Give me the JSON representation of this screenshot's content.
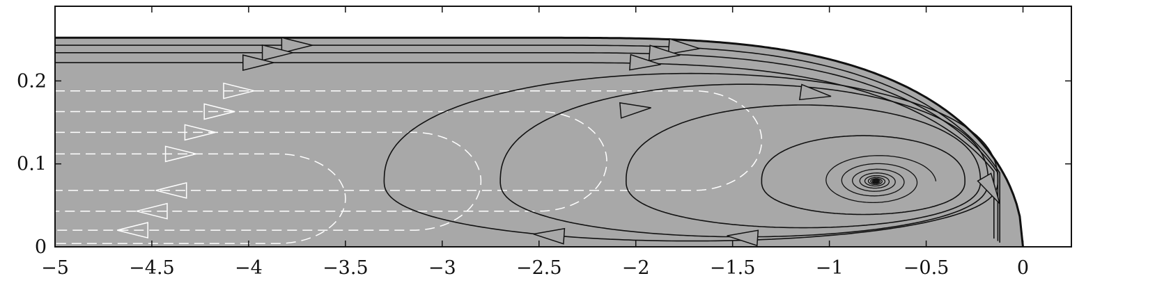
{
  "chart_data": {
    "type": "line",
    "title": "",
    "xlabel": "",
    "ylabel": "",
    "xlim": [
      -5,
      0.25
    ],
    "ylim": [
      0,
      0.29
    ],
    "grid": false,
    "x_ticks": [
      {
        "value": -5,
        "label": "−5"
      },
      {
        "value": -4.5,
        "label": "−4.5"
      },
      {
        "value": -4,
        "label": "−4"
      },
      {
        "value": -3.5,
        "label": "−3.5"
      },
      {
        "value": -3,
        "label": "−3"
      },
      {
        "value": -2.5,
        "label": "−2.5"
      },
      {
        "value": -2,
        "label": "−2"
      },
      {
        "value": -1.5,
        "label": "−1.5"
      },
      {
        "value": -1,
        "label": "−1"
      },
      {
        "value": -0.5,
        "label": "−0.5"
      },
      {
        "value": 0,
        "label": "0"
      }
    ],
    "y_ticks": [
      {
        "value": 0,
        "label": "0"
      },
      {
        "value": 0.1,
        "label": "0.1"
      },
      {
        "value": 0.2,
        "label": "0.2"
      }
    ],
    "region": {
      "fill": "#a8a8a8",
      "x_start": -5,
      "top_height": 0.252,
      "front_x": 0
    },
    "vortex_center": [
      -0.76,
      0.079
    ],
    "colors": {
      "region": "#a8a8a8",
      "streamline": "#111111",
      "dashed": "#ffffff"
    },
    "solid_streamlines": {
      "parallel": [
        {
          "y": 0.243,
          "front_x": -0.12,
          "front_y": 0.005,
          "arrow_x": -3.75
        },
        {
          "y": 0.234,
          "front_x": -0.13,
          "front_y": 0.007,
          "arrow_x": -3.85
        },
        {
          "y": 0.222,
          "front_x": -0.15,
          "front_y": 0.01,
          "arrow_x": -3.95
        }
      ],
      "closed_loops": [
        {
          "x_left": -3.3,
          "arrow_x": -2.45
        },
        {
          "x_left": -2.7,
          "arrow_x": -1.45
        },
        {
          "x_left": -2.05
        },
        {
          "x_left": -1.35
        }
      ]
    },
    "dashed_streamlines": {
      "upper_y": [
        0.188,
        0.163,
        0.138,
        0.112
      ],
      "lower_y": [
        0.068,
        0.043,
        0.02,
        0.004
      ],
      "turn_x": [
        -1.4,
        -2.2,
        -2.85,
        -3.55
      ],
      "arrow_x_upper": [
        -4.05,
        -4.15,
        -4.25,
        -4.35
      ],
      "arrow_x_lower": [
        -4.4,
        -4.5,
        -4.6
      ]
    }
  }
}
